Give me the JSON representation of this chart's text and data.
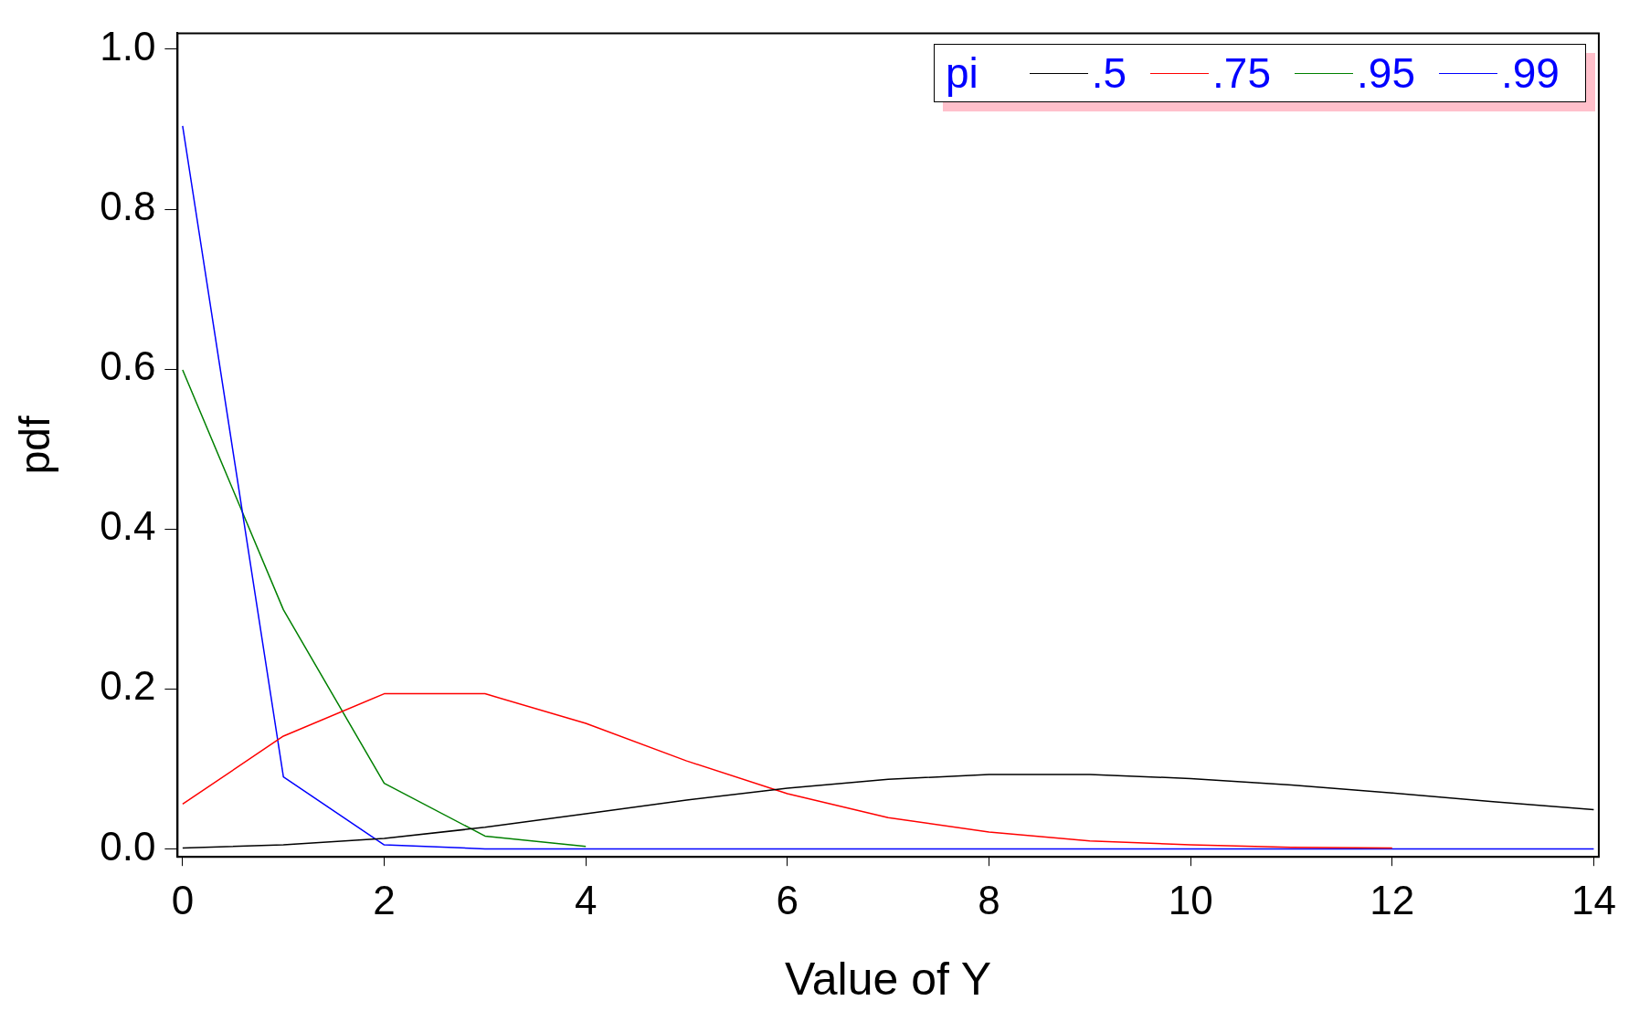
{
  "chart_data": {
    "type": "line",
    "xlabel": "Value of Y",
    "ylabel": "pdf",
    "legend_title": "pi",
    "legend": "top right",
    "grid": false,
    "marker": "none",
    "line_style": "solid",
    "x": [
      0,
      1,
      2,
      3,
      4,
      5,
      6,
      7,
      8,
      9,
      10,
      11,
      12,
      13,
      14
    ],
    "xlim": [
      -0.05,
      14.05
    ],
    "xticks": [
      0,
      2,
      4,
      6,
      8,
      10,
      12,
      14
    ],
    "ylim": [
      -0.01,
      1.02
    ],
    "yticks": [
      {
        "value": 0,
        "label": "0.0"
      },
      {
        "value": 0.2,
        "label": "0.2"
      },
      {
        "value": 0.4,
        "label": "0.4"
      },
      {
        "value": 0.6,
        "label": "0.6"
      },
      {
        "value": 0.8,
        "label": "0.8"
      },
      {
        "value": 1,
        "label": "1.0"
      }
    ],
    "series": [
      {
        "name": ".5",
        "color": "#000000",
        "values": [
          0.001,
          0.005,
          0.013,
          0.027,
          0.044,
          0.061,
          0.076,
          0.087,
          0.093,
          0.093,
          0.088,
          0.08,
          0.07,
          0.059,
          0.049
        ]
      },
      {
        "name": ".75",
        "color": "#ff0000",
        "values": [
          0.056,
          0.141,
          0.194,
          0.194,
          0.157,
          0.11,
          0.069,
          0.039,
          0.021,
          0.01,
          0.005,
          0.002,
          0.001,
          null,
          null
        ]
      },
      {
        "name": ".95",
        "color": "#008000",
        "values": [
          0.599,
          0.299,
          0.082,
          0.016,
          0.003,
          null,
          null,
          null,
          null,
          null,
          null,
          null,
          null,
          null,
          null
        ]
      },
      {
        "name": ".99",
        "color": "#0000ff",
        "values": [
          0.904,
          0.09,
          0.005,
          0,
          0,
          0,
          0,
          0,
          0,
          0,
          0,
          0,
          0,
          0,
          0
        ]
      }
    ]
  }
}
